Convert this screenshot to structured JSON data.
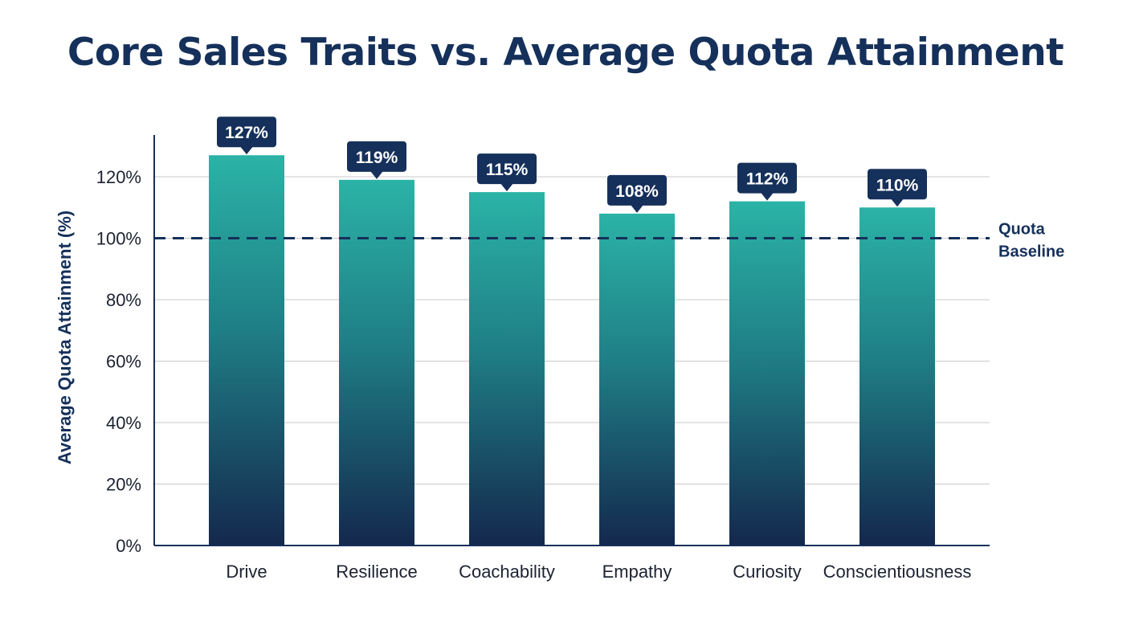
{
  "chart_data": {
    "type": "bar",
    "title": "Core Sales Traits vs. Average Quota Attainment",
    "xlabel": "",
    "ylabel": "Average Quota Attainment (%)",
    "categories": [
      "Drive",
      "Resilience",
      "Coachability",
      "Empathy",
      "Curiosity",
      "Conscientiousness"
    ],
    "values": [
      127,
      119,
      115,
      108,
      112,
      110
    ],
    "data_labels": [
      "127%",
      "119%",
      "115%",
      "108%",
      "112%",
      "110%"
    ],
    "ylim": [
      0,
      135
    ],
    "yticks": [
      0,
      20,
      40,
      60,
      80,
      100,
      120
    ],
    "ytick_labels": [
      "0%",
      "20%",
      "40%",
      "60%",
      "80%",
      "100%",
      "120%"
    ],
    "grid": true,
    "reference_line": {
      "value": 100,
      "label_lines": [
        "Quota",
        "Baseline"
      ],
      "style": "dashed"
    },
    "colors": {
      "bar_top": "#2bb3a6",
      "bar_bottom": "#14284d",
      "label_bg": "#15305a",
      "title": "#15305a",
      "axis": "#15305a",
      "grid": "#c8c8c8"
    }
  }
}
